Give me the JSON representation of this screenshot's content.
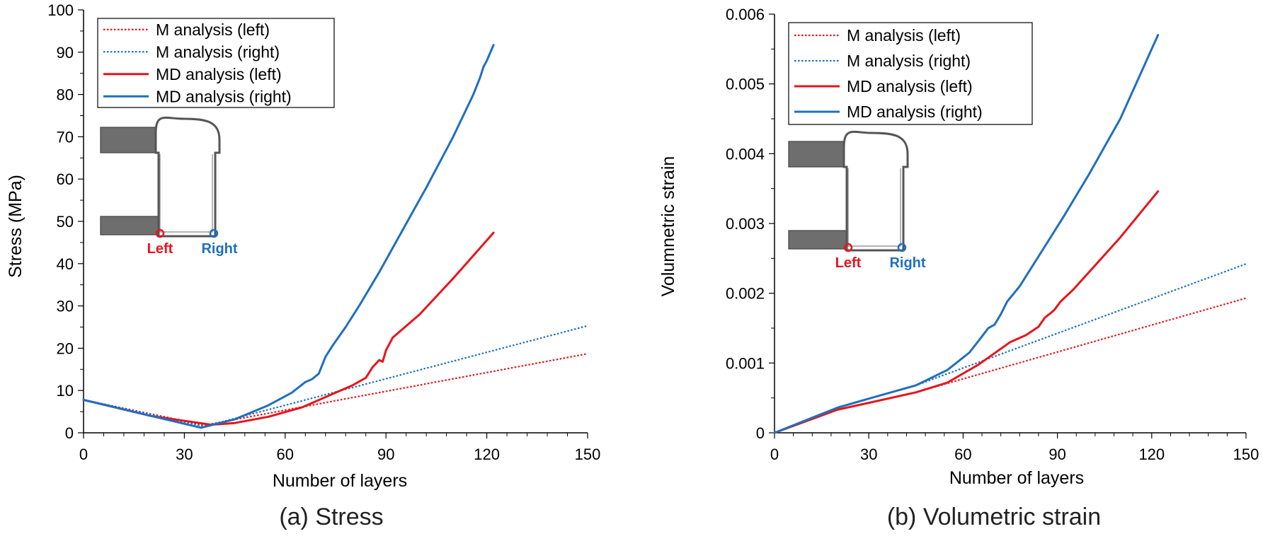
{
  "chart_data": [
    {
      "type": "line",
      "caption": "(a) Stress",
      "xlabel": "Number of layers",
      "ylabel": "Stress (MPa)",
      "xlim": [
        0,
        150
      ],
      "ylim": [
        0,
        100
      ],
      "xticks": [
        0,
        30,
        60,
        90,
        120,
        150
      ],
      "yticks": [
        0,
        10,
        20,
        30,
        40,
        50,
        60,
        70,
        80,
        90,
        100
      ],
      "grid": false,
      "legend_position": "top-left",
      "series": [
        {
          "name": "M analysis (left)",
          "color": "#e8141b",
          "style": "dotted",
          "x": [
            0,
            36,
            150
          ],
          "y": [
            7.8,
            1.8,
            18.7
          ]
        },
        {
          "name": "M analysis (right)",
          "color": "#1f6fbf",
          "style": "dotted",
          "x": [
            0,
            36,
            150
          ],
          "y": [
            7.8,
            1.5,
            25.3
          ]
        },
        {
          "name": "MD analysis (left)",
          "color": "#e8141b",
          "style": "solid",
          "x": [
            0,
            20,
            38,
            45,
            55,
            65,
            75,
            80,
            84,
            86,
            88,
            89,
            90,
            92,
            100,
            110,
            122
          ],
          "y": [
            7.8,
            4.0,
            1.9,
            2.3,
            3.8,
            6.0,
            9.5,
            11.2,
            13.0,
            15.5,
            17.2,
            16.8,
            19.5,
            22.5,
            28.0,
            36.5,
            47.3
          ]
        },
        {
          "name": "MD analysis (right)",
          "color": "#1f6fbf",
          "style": "solid",
          "x": [
            0,
            20,
            35,
            45,
            55,
            62,
            66,
            68,
            70,
            72,
            74,
            78,
            82,
            88,
            95,
            102,
            110,
            116,
            118,
            119,
            120,
            122
          ],
          "y": [
            7.8,
            4.0,
            1.2,
            3.2,
            6.5,
            9.5,
            12.0,
            12.7,
            14.0,
            18.0,
            20.5,
            25.0,
            30.0,
            38.0,
            48.0,
            58.0,
            70.0,
            80.0,
            84.0,
            86.5,
            88.0,
            91.7
          ]
        }
      ],
      "inset": {
        "left_label": "Left",
        "right_label": "Right"
      }
    },
    {
      "type": "line",
      "caption": "(b) Volumetric strain",
      "xlabel": "Number of layers",
      "ylabel": "Volumnetric strain",
      "xlim": [
        0,
        150
      ],
      "ylim": [
        0,
        0.006
      ],
      "xticks": [
        0,
        30,
        60,
        90,
        120,
        150
      ],
      "yticks": [
        0,
        0.001,
        0.002,
        0.003,
        0.004,
        0.005,
        0.006
      ],
      "yticklabels": [
        "0",
        "0.001",
        "0.002",
        "0.003",
        "0.004",
        "0.005",
        "0.006"
      ],
      "grid": false,
      "legend_position": "top-left",
      "series": [
        {
          "name": "M analysis (left)",
          "color": "#e8141b",
          "style": "dotted",
          "x": [
            0,
            20,
            30,
            45,
            150
          ],
          "y": [
            0,
            0.00033,
            0.00043,
            0.00058,
            0.00193
          ]
        },
        {
          "name": "M analysis (right)",
          "color": "#1f6fbf",
          "style": "dotted",
          "x": [
            0,
            20,
            30,
            45,
            150
          ],
          "y": [
            0,
            0.00036,
            0.00049,
            0.00068,
            0.00242
          ]
        },
        {
          "name": "MD analysis (left)",
          "color": "#e8141b",
          "style": "solid",
          "x": [
            0,
            20,
            30,
            45,
            55,
            65,
            75,
            80,
            84,
            86,
            88,
            89,
            91,
            95,
            102,
            110,
            122
          ],
          "y": [
            0,
            0.00033,
            0.00043,
            0.00058,
            0.00072,
            0.00098,
            0.0013,
            0.0014,
            0.00152,
            0.00165,
            0.00172,
            0.00176,
            0.00188,
            0.00205,
            0.0024,
            0.0028,
            0.00346
          ]
        },
        {
          "name": "MD analysis (right)",
          "color": "#1f6fbf",
          "style": "solid",
          "x": [
            0,
            20,
            30,
            45,
            55,
            62,
            66,
            68,
            70,
            72,
            74,
            78,
            85,
            92,
            100,
            110,
            118,
            120,
            122
          ],
          "y": [
            0,
            0.00036,
            0.00049,
            0.00068,
            0.0009,
            0.00115,
            0.00138,
            0.0015,
            0.00155,
            0.0017,
            0.00188,
            0.0021,
            0.0026,
            0.0031,
            0.0037,
            0.0045,
            0.0053,
            0.0055,
            0.0057
          ]
        }
      ],
      "inset": {
        "left_label": "Left",
        "right_label": "Right"
      }
    }
  ]
}
